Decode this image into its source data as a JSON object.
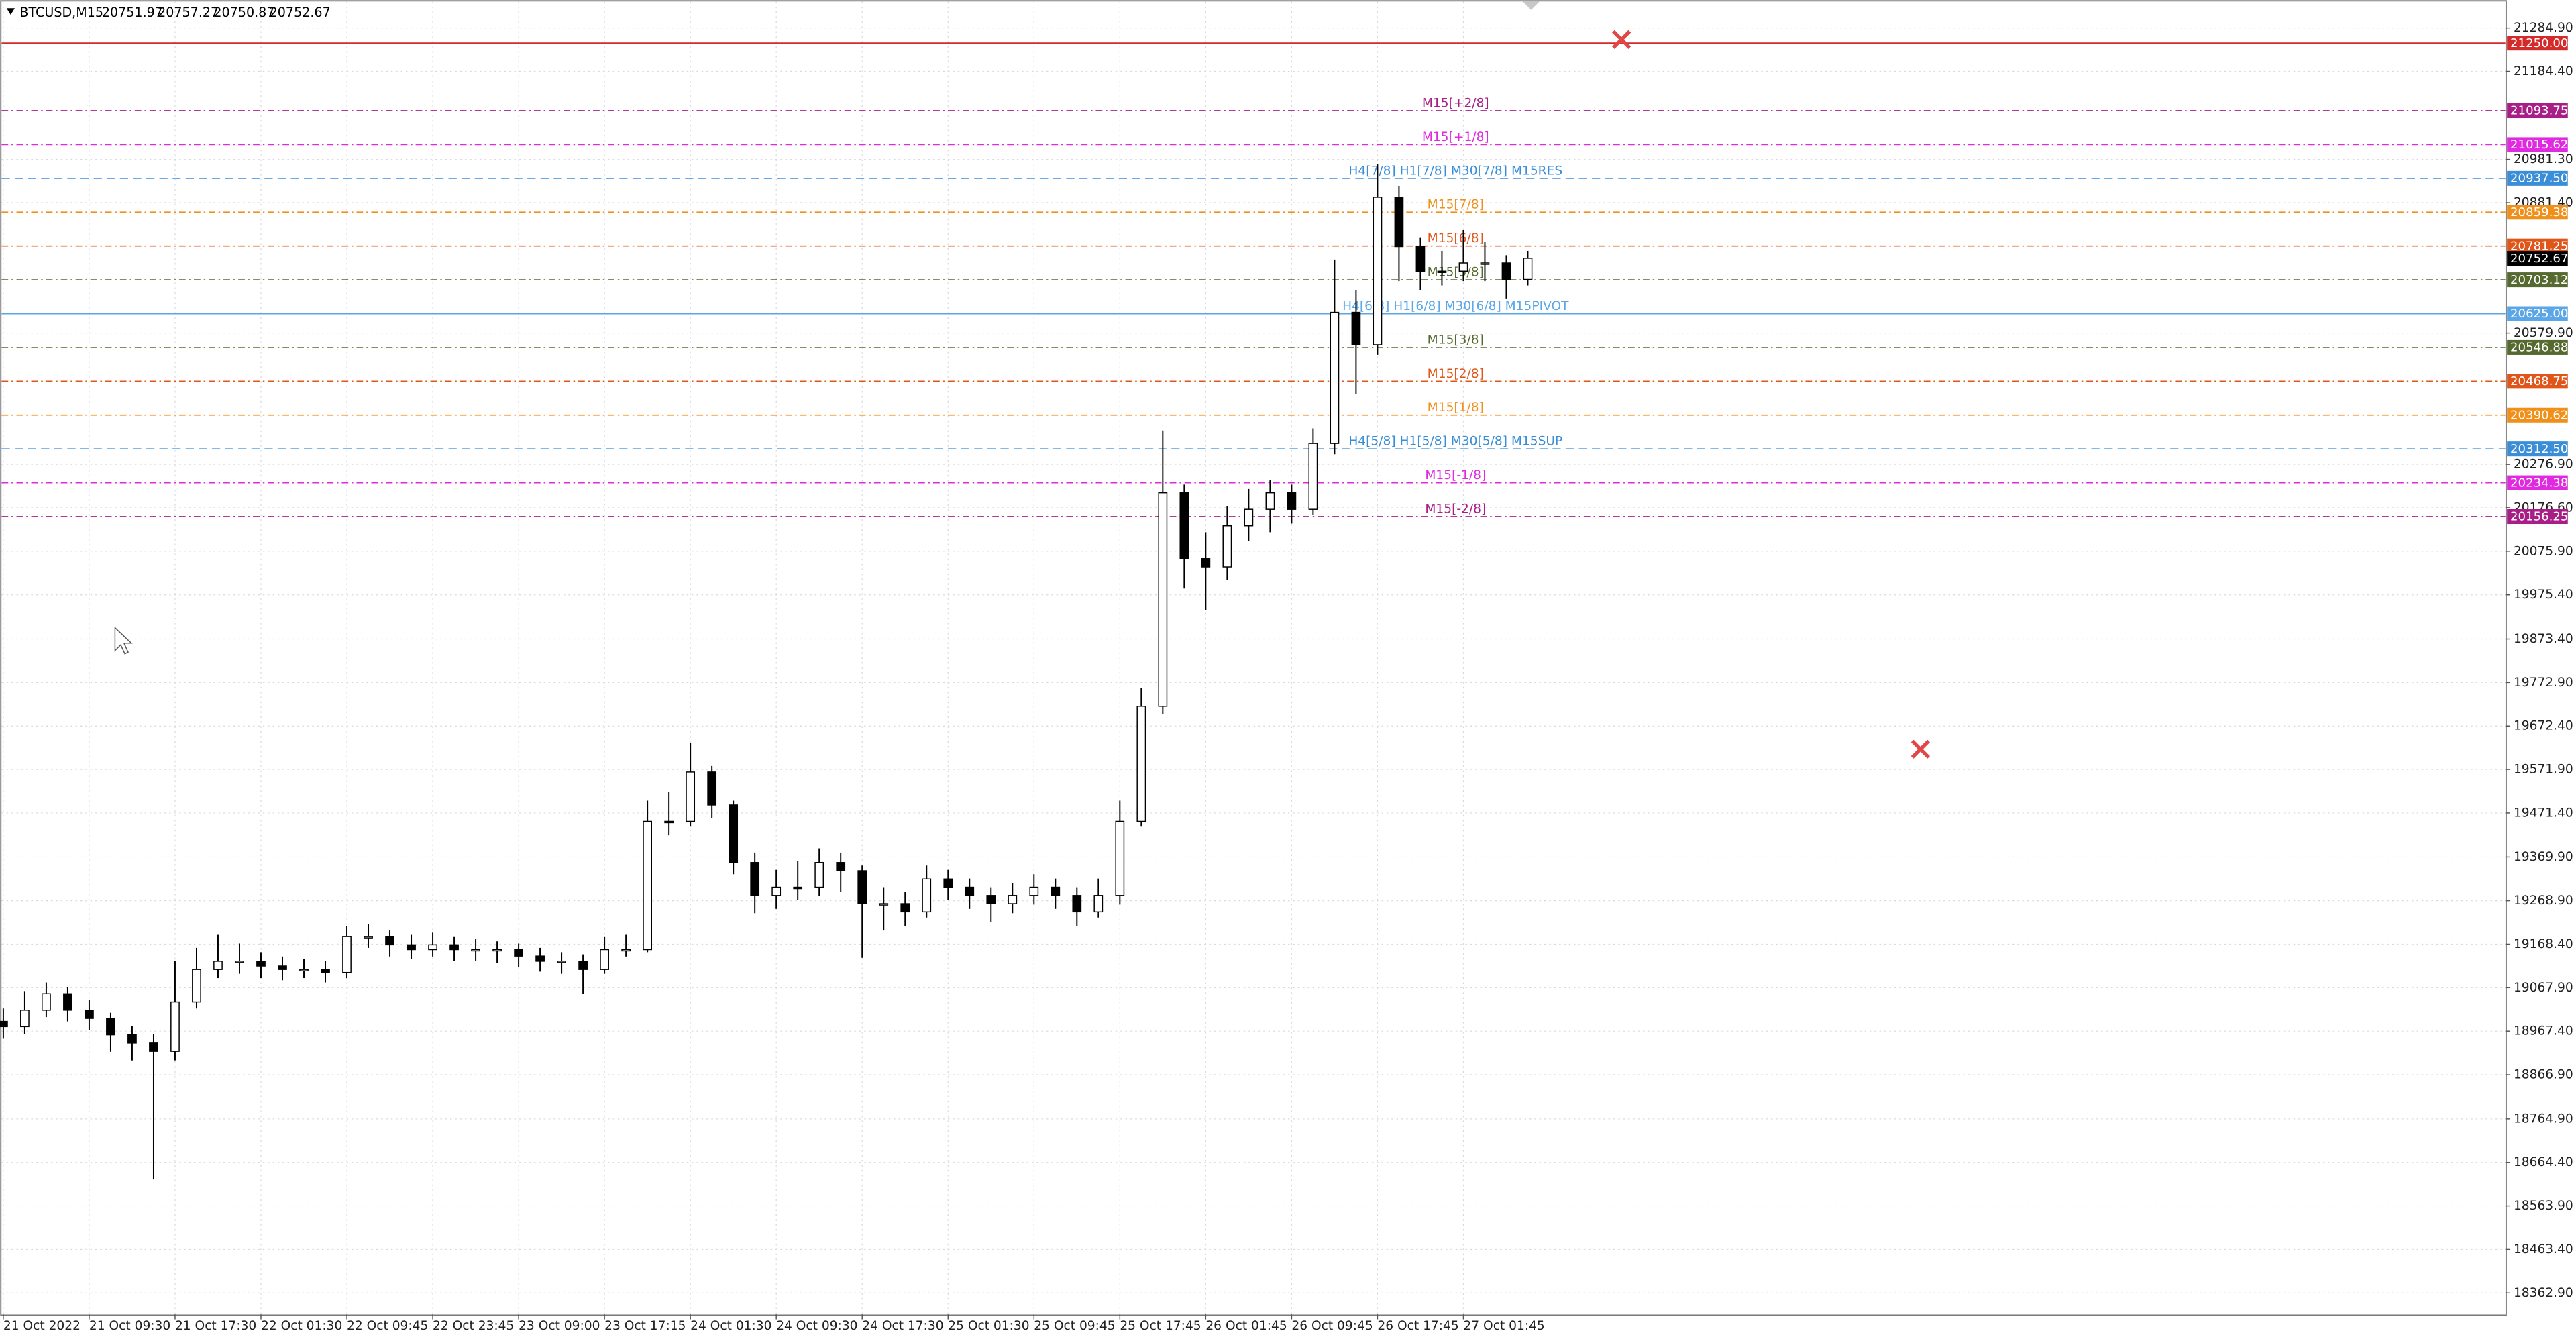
{
  "chart_data": {
    "type": "candlestick",
    "title": "BTCUSD,M15",
    "header_values": [
      20751.97,
      20757.27,
      20750.87,
      20752.67
    ],
    "categories": [
      "21 Oct 2022",
      null,
      null,
      null,
      "21 Oct 09:30",
      null,
      null,
      null,
      "21 Oct 17:30",
      null,
      null,
      null,
      "22 Oct 01:30",
      null,
      null,
      null,
      "22 Oct 09:45",
      null,
      null,
      null,
      "22 Oct 23:45",
      null,
      null,
      null,
      "23 Oct 09:00",
      null,
      null,
      null,
      "23 Oct 17:15",
      null,
      null,
      null,
      "24 Oct 01:30",
      null,
      null,
      null,
      "24 Oct 09:30",
      null,
      null,
      null,
      "24 Oct 17:30",
      null,
      null,
      null,
      "25 Oct 01:30",
      null,
      null,
      null,
      "25 Oct 09:45",
      null,
      null,
      null,
      "25 Oct 17:45",
      null,
      null,
      null,
      "26 Oct 01:45",
      null,
      null,
      null,
      "26 Oct 09:45",
      null,
      null,
      null,
      "26 Oct 17:45",
      null,
      null,
      null,
      "27 Oct 01:45",
      null,
      null,
      null
    ],
    "open": [
      18990,
      18978,
      19016,
      19054,
      19016,
      18997,
      18959,
      18940,
      18921,
      19035,
      19110,
      19129,
      19129,
      19118,
      19110,
      19110,
      19103,
      19186,
      19186,
      19167,
      19156,
      19167,
      19156,
      19156,
      19156,
      19141,
      19129,
      19129,
      19110,
      19156,
      19156,
      19452,
      19452,
      19566,
      19490,
      19357,
      19281,
      19300,
      19300,
      19357,
      19338,
      19262,
      19262,
      19243,
      19319,
      19300,
      19281,
      19262,
      19281,
      19300,
      19281,
      19243,
      19281,
      19452,
      19718,
      20211,
      20059,
      20040,
      20135,
      20173,
      20211,
      20173,
      20325,
      20628,
      20553,
      20894,
      20780,
      20723,
      20723,
      20742,
      20742,
      20704
    ],
    "high": [
      19020,
      19060,
      19080,
      19070,
      19040,
      19010,
      18980,
      18960,
      19130,
      19160,
      19190,
      19170,
      19150,
      19140,
      19135,
      19130,
      19210,
      19215,
      19200,
      19190,
      19195,
      19185,
      19180,
      19175,
      19170,
      19160,
      19150,
      19145,
      19185,
      19190,
      19500,
      19520,
      19634,
      19580,
      19500,
      19380,
      19340,
      19360,
      19390,
      19380,
      19350,
      19300,
      19290,
      19350,
      19340,
      19320,
      19300,
      19310,
      19330,
      19320,
      19300,
      19320,
      19500,
      19760,
      20355,
      20230,
      20120,
      20180,
      20220,
      20240,
      20230,
      20360,
      20750,
      20680,
      20970,
      20920,
      20800,
      20770,
      20818,
      20790,
      20760,
      20770
    ],
    "low": [
      18950,
      18960,
      19000,
      18990,
      18970,
      18920,
      18900,
      18625,
      18900,
      19020,
      19090,
      19100,
      19090,
      19085,
      19090,
      19080,
      19090,
      19160,
      19140,
      19135,
      19140,
      19130,
      19130,
      19125,
      19115,
      19105,
      19100,
      19054,
      19100,
      19140,
      19150,
      19420,
      19440,
      19460,
      19330,
      19240,
      19250,
      19270,
      19280,
      19290,
      19137,
      19200,
      19210,
      19230,
      19270,
      19250,
      19220,
      19240,
      19260,
      19250,
      19210,
      19230,
      19260,
      19440,
      19700,
      19990,
      19940,
      20010,
      20100,
      20120,
      20140,
      20160,
      20300,
      20439,
      20530,
      20700,
      20680,
      20690,
      20700,
      20700,
      20660,
      20690
    ],
    "close": [
      18978,
      19016,
      19054,
      19016,
      18997,
      18959,
      18940,
      18921,
      19035,
      19110,
      19129,
      19129,
      19118,
      19110,
      19110,
      19103,
      19186,
      19186,
      19167,
      19156,
      19167,
      19156,
      19156,
      19156,
      19141,
      19129,
      19129,
      19110,
      19156,
      19156,
      19452,
      19452,
      19566,
      19490,
      19357,
      19281,
      19300,
      19300,
      19357,
      19338,
      19262,
      19262,
      19243,
      19319,
      19300,
      19281,
      19262,
      19281,
      19300,
      19281,
      19243,
      19281,
      19452,
      19718,
      20211,
      20059,
      20040,
      20135,
      20173,
      20211,
      20173,
      20325,
      20628,
      20553,
      20894,
      20780,
      20723,
      20723,
      20742,
      20742,
      20704,
      20753
    ],
    "bull_color": "#ffffff",
    "bear_color": "#000000",
    "ylim": [
      18313.4,
      21349.4
    ],
    "yticks": [
      {
        "value": 21284.9,
        "label": "21284.90"
      },
      {
        "value": 21184.4,
        "label": "21184.40"
      },
      {
        "value": 20981.3,
        "label": "20981.30"
      },
      {
        "value": 20881.4,
        "label": "20881.40"
      },
      {
        "value": 20579.9,
        "label": "20579.90"
      },
      {
        "value": 20276.9,
        "label": "20276.90"
      },
      {
        "value": 20176.6,
        "label": "20176.60"
      },
      {
        "value": 20075.9,
        "label": "20075.90"
      },
      {
        "value": 19975.4,
        "label": "19975.40"
      },
      {
        "value": 19873.4,
        "label": "19873.40"
      },
      {
        "value": 19772.9,
        "label": "19772.90"
      },
      {
        "value": 19672.4,
        "label": "19672.40"
      },
      {
        "value": 19571.9,
        "label": "19571.90"
      },
      {
        "value": 19471.4,
        "label": "19471.40"
      },
      {
        "value": 19369.9,
        "label": "19369.90"
      },
      {
        "value": 19268.9,
        "label": "19268.90"
      },
      {
        "value": 19168.4,
        "label": "19168.40"
      },
      {
        "value": 19067.9,
        "label": "19067.90"
      },
      {
        "value": 18967.4,
        "label": "18967.40"
      },
      {
        "value": 18866.9,
        "label": "18866.90"
      },
      {
        "value": 18764.9,
        "label": "18764.90"
      },
      {
        "value": 18664.4,
        "label": "18664.40"
      },
      {
        "value": 18563.9,
        "label": "18563.90"
      },
      {
        "value": 18463.4,
        "label": "18463.40"
      },
      {
        "value": 18362.9,
        "label": "18362.90"
      }
    ],
    "grid": true,
    "levels": [
      {
        "value": 21250,
        "label": "21250.00",
        "color": "#d42a2a",
        "style": "solid"
      },
      {
        "value": 21093.75,
        "label": "21093.75",
        "color": "#a81e86",
        "style": "dashdot",
        "name": "M15[+2/8]"
      },
      {
        "value": 21015.62,
        "label": "21015.62",
        "color": "#e02ae0",
        "style": "dashdot",
        "name": "M15[+1/8]"
      },
      {
        "value": 20937.5,
        "label": "20937.50",
        "color": "#3a8ed8",
        "style": "dash",
        "name": "H4[7/8] H1[7/8] M30[7/8] M15RES"
      },
      {
        "value": 20859.38,
        "label": "20859.38",
        "color": "#f0901a",
        "style": "dashdot",
        "name": "M15[7/8]"
      },
      {
        "value": 20781.25,
        "label": "20781.25",
        "color": "#e0561a",
        "style": "dashdot",
        "name": "M15[6/8]"
      },
      {
        "value": 20752.67,
        "label": "20752.67",
        "color": "#000000",
        "style": "none"
      },
      {
        "value": 20703.12,
        "label": "20703.12",
        "color": "#56692e",
        "style": "dashdot",
        "name": "M15[5/8]"
      },
      {
        "value": 20625,
        "label": "20625.00",
        "color": "#5aa6e6",
        "style": "solid",
        "name": "H4[6/8] H1[6/8] M30[6/8] M15PIVOT"
      },
      {
        "value": 20546.88,
        "label": "20546.88",
        "color": "#56692e",
        "style": "dashdot",
        "name": "M15[3/8]"
      },
      {
        "value": 20468.75,
        "label": "20468.75",
        "color": "#e0561a",
        "style": "dashdot",
        "name": "M15[2/8]"
      },
      {
        "value": 20390.62,
        "label": "20390.62",
        "color": "#f0901a",
        "style": "dashdot",
        "name": "M15[1/8]"
      },
      {
        "value": 20312.5,
        "label": "20312.50",
        "color": "#3a8ed8",
        "style": "dash",
        "name": "H4[5/8] H1[5/8] M30[5/8] M15SUP"
      },
      {
        "value": 20234.38,
        "label": "20234.38",
        "color": "#e02ae0",
        "style": "dashdot",
        "name": "M15[-1/8]"
      },
      {
        "value": 20156.25,
        "label": "20156.25",
        "color": "#a81e86",
        "style": "dashdot",
        "name": "M15[-2/8]"
      }
    ]
  }
}
